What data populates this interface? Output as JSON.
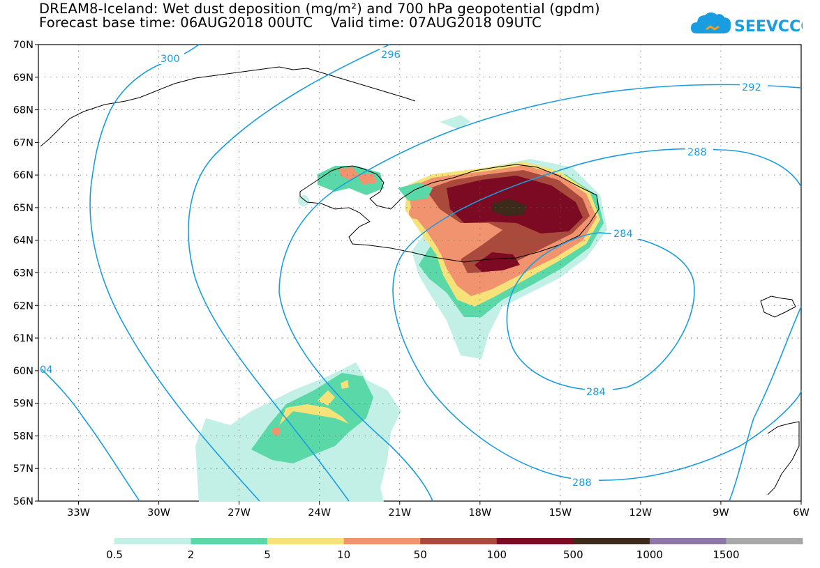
{
  "title": {
    "line1": "DREAM8-Iceland: Wet dust deposition (mg/m²) and 700 hPa geopotential (gpdm)",
    "line2": "Forecast base time: 06AUG2018 00UTC    Valid time: 07AUG2018 09UTC"
  },
  "logo": {
    "text": "SEEVCCC",
    "icon": "cloud-icon",
    "color": "#1a9de0"
  },
  "axes": {
    "lat_labels": [
      "70N",
      "69N",
      "68N",
      "67N",
      "66N",
      "65N",
      "64N",
      "63N",
      "62N",
      "61N",
      "60N",
      "59N",
      "58N",
      "57N",
      "56N"
    ],
    "lon_labels": [
      "33W",
      "30W",
      "27W",
      "24W",
      "21W",
      "18W",
      "15W",
      "12W",
      "9W",
      "6W"
    ]
  },
  "contours": {
    "color": "#1a9de0",
    "labels": [
      "300",
      "296",
      "292",
      "288",
      "284",
      "284",
      "288",
      "04"
    ]
  },
  "legend": {
    "colors": [
      "#c2f0e6",
      "#5ad8a8",
      "#f5e37a",
      "#f0936e",
      "#a94a3d",
      "#7b0a22",
      "#3c2a1a",
      "#8e77a8",
      "#a8a8a8"
    ],
    "labels": [
      "0.5",
      "2",
      "5",
      "10",
      "50",
      "100",
      "500",
      "1000",
      "1500"
    ]
  }
}
